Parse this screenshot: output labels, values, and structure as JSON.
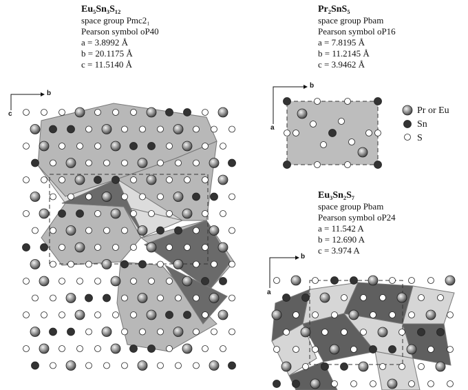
{
  "panels": [
    {
      "formula": "Eu₅Sn₃S₁₂",
      "lines": [
        "space group Pmc2₁",
        "Pearson symbol oP40",
        "a = 3.8992 Å",
        "b = 20.1175 Å",
        "c = 11.5140  Å"
      ],
      "axes": [
        "b",
        "c"
      ]
    },
    {
      "formula": "Pr₂SnS₅",
      "lines": [
        "space group Pbam",
        "Pearson symbol oP16",
        "a = 7.8195 Å",
        "b = 11.2145 Å",
        "c = 3.9462  Å"
      ],
      "axes": [
        "b",
        "a"
      ]
    },
    {
      "formula": "Eu₃Sn₂S₇",
      "lines": [
        "space group Pbam",
        "Pearson symbol oP24",
        "a = 11.542 A",
        "b = 12.690 A",
        "c = 3.974  A"
      ],
      "axes": [
        "b",
        "a"
      ]
    }
  ],
  "legend": [
    "Pr or Eu",
    "Sn",
    "S"
  ]
}
